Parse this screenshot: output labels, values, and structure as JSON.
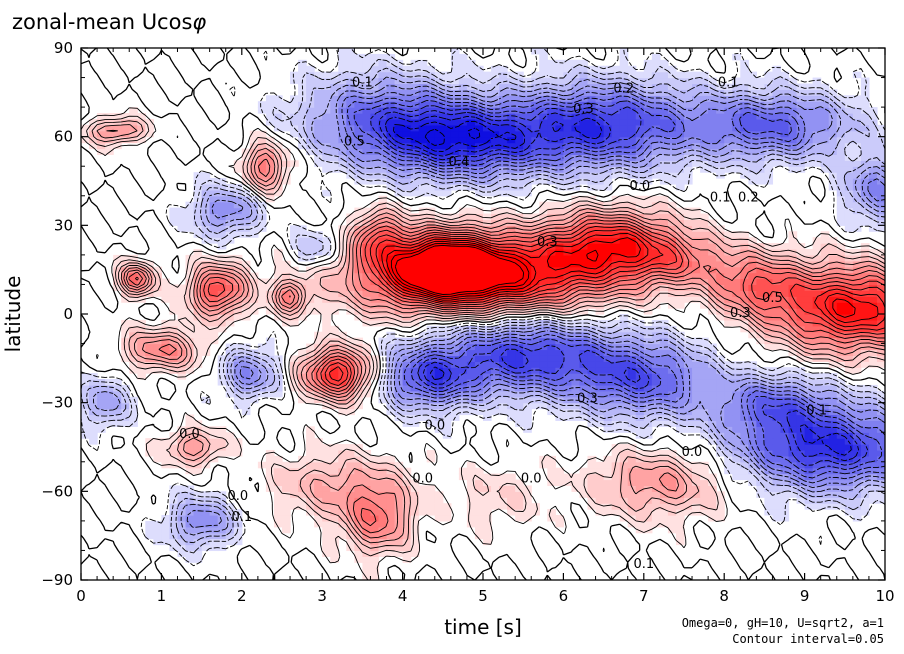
{
  "chart_data": {
    "type": "heatmap",
    "title_main": "zonal-mean Ucos",
    "title_symbol": "φ",
    "xlabel": "time [s]",
    "ylabel": "latitude",
    "xlim": [
      0,
      10
    ],
    "ylim": [
      -90,
      90
    ],
    "x_ticks": [
      "0",
      "1",
      "2",
      "3",
      "4",
      "5",
      "6",
      "7",
      "8",
      "9",
      "10"
    ],
    "y_ticks": [
      "90",
      "60",
      "30",
      "0",
      "−30",
      "−60",
      "−90"
    ],
    "x_tick_values": [
      0,
      1,
      2,
      3,
      4,
      5,
      6,
      7,
      8,
      9,
      10
    ],
    "y_tick_values": [
      90,
      60,
      30,
      0,
      -30,
      -60,
      -90
    ],
    "params_note": "Omega=0, gH=10, U=sqrt2, a=1",
    "contour_note": "Contour interval=0.05",
    "contour_interval": 0.05,
    "colors": {
      "positive": "#ff0000",
      "negative": "#1010e0",
      "zero": "#ffffff"
    },
    "contour_labels": [
      {
        "text": "0.1",
        "x": 3.5,
        "y": 77
      },
      {
        "text": "0.2",
        "x": 6.75,
        "y": 75
      },
      {
        "text": "0.1",
        "x": 8.05,
        "y": 77
      },
      {
        "text": "0.3",
        "x": 6.25,
        "y": 68
      },
      {
        "text": "0.4",
        "x": 4.7,
        "y": 50
      },
      {
        "text": "0.5",
        "x": 3.4,
        "y": 57
      },
      {
        "text": "0.0",
        "x": 6.95,
        "y": 42
      },
      {
        "text": "0.1",
        "x": 7.95,
        "y": 38
      },
      {
        "text": "0.2",
        "x": 8.3,
        "y": 38
      },
      {
        "text": "0.3",
        "x": 5.8,
        "y": 23
      },
      {
        "text": "0.5",
        "x": 8.6,
        "y": 4
      },
      {
        "text": "0.3",
        "x": 8.2,
        "y": -1
      },
      {
        "text": "0.0",
        "x": 4.4,
        "y": -39
      },
      {
        "text": "0.3",
        "x": 6.3,
        "y": -30
      },
      {
        "text": "0.1",
        "x": 9.15,
        "y": -34
      },
      {
        "text": "0.0",
        "x": 1.95,
        "y": -63
      },
      {
        "text": "0.0",
        "x": 4.25,
        "y": -57
      },
      {
        "text": "0.1",
        "x": 2.0,
        "y": -70
      },
      {
        "text": "0.0",
        "x": 5.6,
        "y": -57
      },
      {
        "text": "0.0",
        "x": 7.6,
        "y": -48
      },
      {
        "text": "0.1",
        "x": 7.0,
        "y": -86
      },
      {
        "text": "0.0",
        "x": 1.35,
        "y": -42
      }
    ],
    "field": {
      "blobs": [
        {
          "t": 5.0,
          "lat": 13,
          "st": 1.1,
          "sl": 9,
          "a": 0.65
        },
        {
          "t": 4.5,
          "lat": 17,
          "st": 0.5,
          "sl": 8,
          "a": 0.5
        },
        {
          "t": 6.6,
          "lat": 24,
          "st": 0.6,
          "sl": 8,
          "a": 0.5
        },
        {
          "t": 9.6,
          "lat": 2,
          "st": 0.7,
          "sl": 10,
          "a": 0.6
        },
        {
          "t": 8.4,
          "lat": 10,
          "st": 0.4,
          "sl": 7,
          "a": 0.3
        },
        {
          "t": 7.5,
          "lat": 18,
          "st": 0.5,
          "sl": 6,
          "a": 0.2
        },
        {
          "t": 3.7,
          "lat": 27,
          "st": 0.2,
          "sl": 6,
          "a": 0.3
        },
        {
          "t": 3.2,
          "lat": -20,
          "st": 0.3,
          "sl": 6,
          "a": 0.55
        },
        {
          "t": 1.7,
          "lat": 8,
          "st": 0.25,
          "sl": 6,
          "a": 0.45
        },
        {
          "t": 2.3,
          "lat": 50,
          "st": 0.2,
          "sl": 6,
          "a": 0.35
        },
        {
          "t": 0.45,
          "lat": 62,
          "st": 0.25,
          "sl": 3,
          "a": 0.3
        },
        {
          "t": 1.0,
          "lat": -12,
          "st": 0.35,
          "sl": 5,
          "a": 0.3
        },
        {
          "t": 0.7,
          "lat": 12,
          "st": 0.15,
          "sl": 4,
          "a": 0.4
        },
        {
          "t": 2.6,
          "lat": 6,
          "st": 0.15,
          "sl": 4,
          "a": 0.3
        },
        {
          "t": 1.4,
          "lat": -45,
          "st": 0.25,
          "sl": 4,
          "a": 0.25
        },
        {
          "t": 3.7,
          "lat": -70,
          "st": 0.3,
          "sl": 8,
          "a": 0.3
        },
        {
          "t": 3.2,
          "lat": -58,
          "st": 0.6,
          "sl": 8,
          "a": 0.2
        },
        {
          "t": 7.2,
          "lat": -57,
          "st": 0.6,
          "sl": 8,
          "a": 0.25
        },
        {
          "t": 5.2,
          "lat": -62,
          "st": 0.4,
          "sl": 8,
          "a": 0.1
        },
        {
          "t": 4.7,
          "lat": 59,
          "st": 0.8,
          "sl": 9,
          "a": -0.55
        },
        {
          "t": 3.7,
          "lat": 68,
          "st": 0.7,
          "sl": 10,
          "a": -0.3
        },
        {
          "t": 6.5,
          "lat": 64,
          "st": 0.8,
          "sl": 10,
          "a": -0.5
        },
        {
          "t": 8.6,
          "lat": 64,
          "st": 0.7,
          "sl": 8,
          "a": -0.4
        },
        {
          "t": 9.9,
          "lat": 42,
          "st": 0.3,
          "sl": 8,
          "a": -0.3
        },
        {
          "t": 5.5,
          "lat": -14,
          "st": 0.8,
          "sl": 9,
          "a": -0.5
        },
        {
          "t": 4.3,
          "lat": -22,
          "st": 0.4,
          "sl": 7,
          "a": -0.4
        },
        {
          "t": 7.0,
          "lat": -22,
          "st": 0.6,
          "sl": 9,
          "a": -0.4
        },
        {
          "t": 9.3,
          "lat": -45,
          "st": 0.8,
          "sl": 10,
          "a": -0.55
        },
        {
          "t": 8.6,
          "lat": -30,
          "st": 0.5,
          "sl": 7,
          "a": -0.3
        },
        {
          "t": 2.1,
          "lat": -20,
          "st": 0.25,
          "sl": 6,
          "a": -0.3
        },
        {
          "t": 1.8,
          "lat": 35,
          "st": 0.3,
          "sl": 6,
          "a": -0.3
        },
        {
          "t": 1.5,
          "lat": -70,
          "st": 0.3,
          "sl": 6,
          "a": -0.3
        },
        {
          "t": 0.3,
          "lat": -30,
          "st": 0.2,
          "sl": 6,
          "a": -0.25
        },
        {
          "t": 2.9,
          "lat": 22,
          "st": 0.2,
          "sl": 5,
          "a": -0.2
        }
      ]
    }
  }
}
